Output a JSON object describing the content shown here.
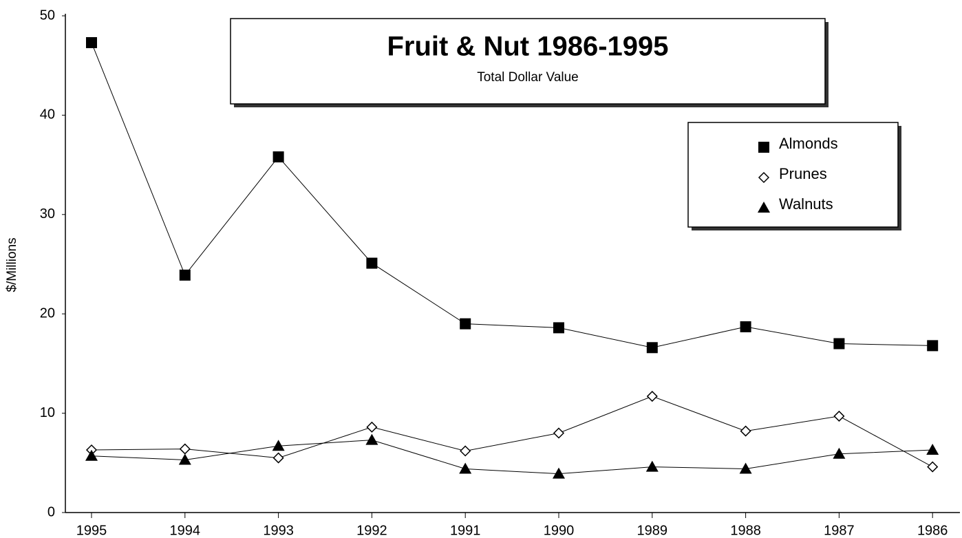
{
  "chart_data": {
    "type": "line",
    "title": "Fruit & Nut 1986-1995",
    "subtitle": "Total Dollar Value",
    "ylabel": "$/Millions",
    "categories": [
      "1995",
      "1994",
      "1993",
      "1992",
      "1991",
      "1990",
      "1989",
      "1988",
      "1987",
      "1986"
    ],
    "series": [
      {
        "name": "Almonds",
        "color": "#000000",
        "marker": "square",
        "values": [
          47.3,
          23.9,
          35.8,
          25.1,
          19.0,
          18.6,
          16.6,
          18.7,
          17.0,
          16.8
        ]
      },
      {
        "name": "Prunes",
        "color": "#000000",
        "marker": "diamond",
        "values": [
          6.3,
          6.4,
          5.5,
          8.6,
          6.2,
          8.0,
          11.7,
          8.2,
          9.7,
          4.6
        ]
      },
      {
        "name": "Walnuts",
        "color": "#000000",
        "marker": "triangle",
        "values": [
          5.7,
          5.3,
          6.7,
          7.3,
          4.4,
          3.9,
          4.6,
          4.4,
          5.9,
          6.3
        ]
      }
    ],
    "ylim": [
      0,
      50
    ],
    "yticks": [
      0,
      10,
      20,
      30,
      40,
      50
    ],
    "legend": "upper right"
  }
}
